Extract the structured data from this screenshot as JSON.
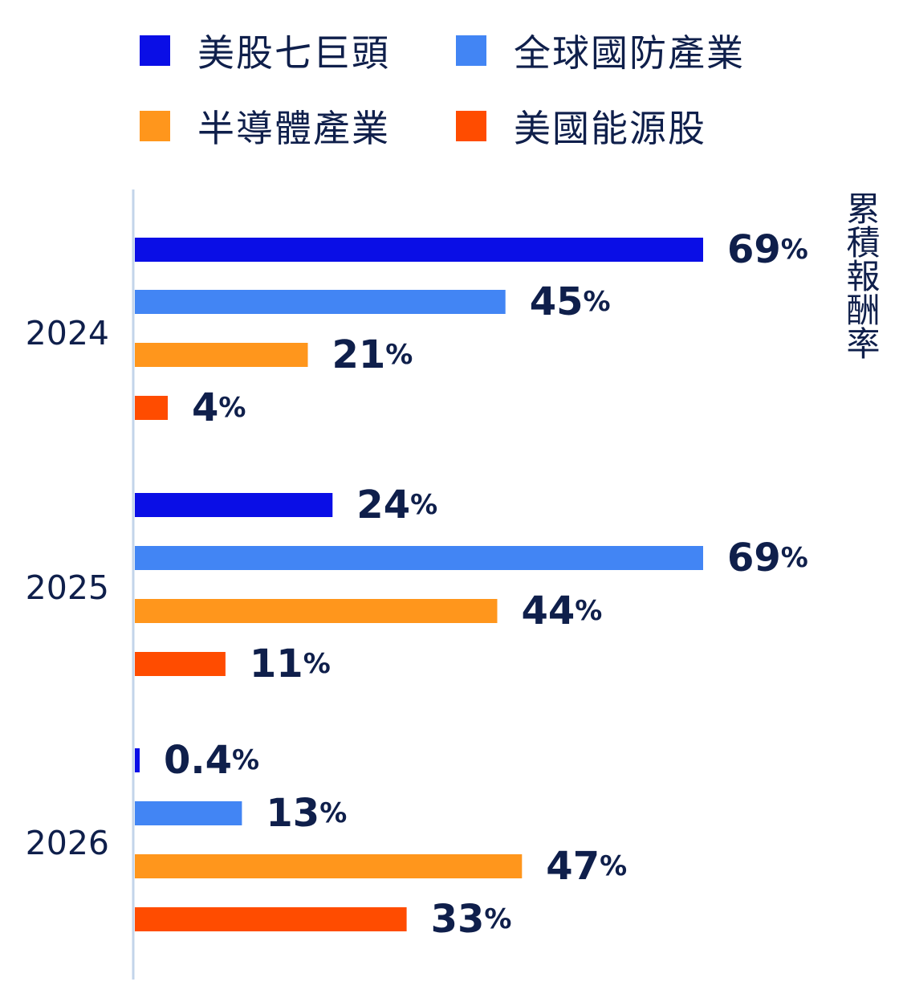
{
  "chart_data": {
    "type": "bar",
    "orientation": "horizontal",
    "categories": [
      "2024",
      "2025",
      "2026"
    ],
    "series": [
      {
        "name": "美股七巨頭",
        "color": "#0a0ee6",
        "values": [
          69,
          24,
          0.4
        ]
      },
      {
        "name": "全球國防產業",
        "color": "#4285f4",
        "values": [
          45,
          69,
          13
        ]
      },
      {
        "name": "半導體產業",
        "color": "#ff961c",
        "values": [
          21,
          44,
          47
        ]
      },
      {
        "name": "美國能源股",
        "color": "#ff4c00",
        "values": [
          4,
          11,
          33
        ]
      }
    ],
    "value_labels": [
      [
        "69",
        "24",
        "0.4"
      ],
      [
        "45",
        "69",
        "13"
      ],
      [
        "21",
        "44",
        "47"
      ],
      [
        "4",
        "11",
        "33"
      ]
    ],
    "value_suffix": "%",
    "title": "",
    "xlabel": "",
    "ylabel": "累積報酬率",
    "legend_position": "top",
    "grid": false
  },
  "colors": {
    "text": "#0f1f4b",
    "axis": "#c3d4ea"
  }
}
